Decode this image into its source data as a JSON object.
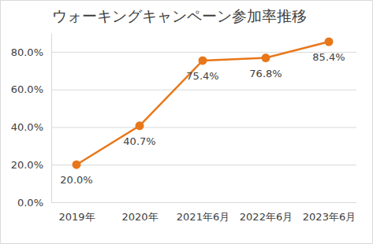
{
  "chart_data": {
    "type": "line",
    "title": "ウォーキングキャンペーン参加率推移",
    "categories": [
      "2019年",
      "2020年",
      "2021年6月",
      "2022年6月",
      "2023年6月"
    ],
    "values": [
      20.0,
      40.7,
      75.4,
      76.8,
      85.4
    ],
    "value_labels": [
      "20.0%",
      "40.7%",
      "75.4%",
      "76.8%",
      "85.4%"
    ],
    "data_labels": true,
    "color": "#e8771a",
    "marker": "circle",
    "ylim": [
      0,
      90
    ],
    "yticks": [
      {
        "value": 0,
        "label": "0.0%"
      },
      {
        "value": 20,
        "label": "20.0%"
      },
      {
        "value": 40,
        "label": "40.0%"
      },
      {
        "value": 60,
        "label": "60.0%"
      },
      {
        "value": 80,
        "label": "80.0%"
      }
    ],
    "grid": true
  }
}
